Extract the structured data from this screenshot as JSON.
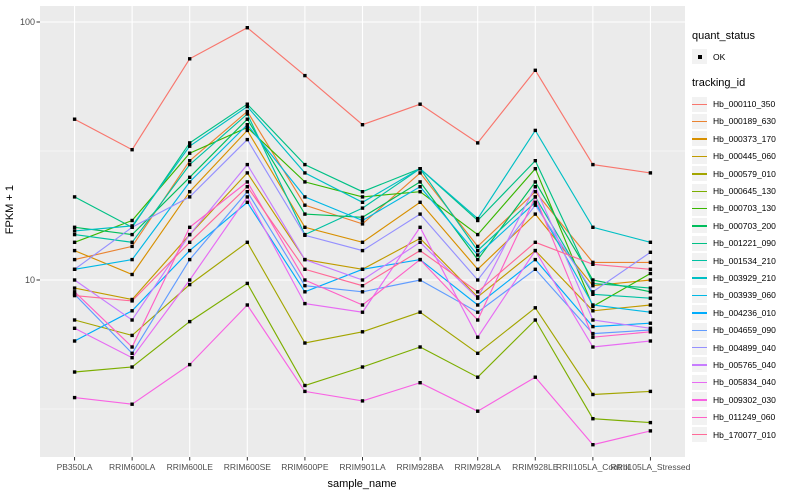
{
  "colors": {
    "figure_bg": "#FFFFFF",
    "panel_bg": "#EBEBEB",
    "grid_major": "#FFFFFF",
    "grid_minor": "#FFFFFF",
    "tick_mark": "#333333",
    "tick_label": "#4D4D4D",
    "marker": "#000000",
    "legend_key_bg": "#F2F2F2"
  },
  "legend": {
    "quant_title": "quant_status",
    "ok_label": "OK",
    "tracking_title": "tracking_id"
  },
  "chart_data": {
    "type": "line",
    "title": "",
    "xlabel": "sample_name",
    "ylabel": "FPKM + 1",
    "y_scale": "log10",
    "ylim": [
      2.1,
      113
    ],
    "y_major_ticks": [
      {
        "label": "10",
        "value": 10
      },
      {
        "label": "100",
        "value": 100
      }
    ],
    "y_minor_ticks": [
      3.162,
      31.62
    ],
    "grid": true,
    "legend_position": "right",
    "marker": "black-square",
    "quant_status_value": "OK",
    "categories": [
      "PB350LA",
      "RRIM600LA",
      "RRIM600LE",
      "RRIM600SE",
      "RRIM600PE",
      "RRIM901LA",
      "RRIM928BA",
      "RRIM928LA",
      "RRIM928LE",
      "RRII105LA_Control",
      "RRII105LA_Stressed"
    ],
    "series": [
      {
        "name": "Hb_000110_350",
        "color": "#F8766D",
        "values": [
          42,
          32,
          72,
          95,
          62,
          40,
          48,
          34,
          65,
          28,
          26
        ]
      },
      {
        "name": "Hb_000189_630",
        "color": "#EA8331",
        "values": [
          12,
          13.5,
          29,
          45,
          19.5,
          16.5,
          26,
          13.5,
          22,
          11.7,
          11.7
        ]
      },
      {
        "name": "Hb_000373_170",
        "color": "#D89000",
        "values": [
          13,
          10.5,
          22,
          38,
          16,
          14,
          20,
          11,
          18,
          9.5,
          10
        ]
      },
      {
        "name": "Hb_000445_060",
        "color": "#C09B00",
        "values": [
          9.3,
          8.4,
          15,
          26,
          12,
          11,
          14.5,
          8.6,
          13,
          7.6,
          8
        ]
      },
      {
        "name": "Hb_000579_010",
        "color": "#A3A500",
        "values": [
          7,
          6.1,
          9.6,
          14,
          5.7,
          6.3,
          7.5,
          5.2,
          7.8,
          3.6,
          3.7
        ]
      },
      {
        "name": "Hb_000645_130",
        "color": "#7CAE00",
        "values": [
          4.4,
          4.6,
          6.9,
          9.7,
          3.9,
          4.6,
          5.5,
          4.2,
          7,
          2.9,
          2.8
        ]
      },
      {
        "name": "Hb_000703_130",
        "color": "#39B600",
        "values": [
          14,
          17,
          31,
          39,
          24,
          21,
          22,
          15,
          27,
          7.9,
          10.6
        ]
      },
      {
        "name": "Hb_000703_200",
        "color": "#00BD5C",
        "values": [
          16,
          15,
          25,
          42,
          18,
          17.5,
          24,
          12,
          24,
          10,
          9
        ]
      },
      {
        "name": "Hb_001221_090",
        "color": "#00C085",
        "values": [
          21,
          16,
          34,
          48,
          28,
          22,
          27,
          17,
          29,
          9.7,
          9.3
        ]
      },
      {
        "name": "Hb_001534_210",
        "color": "#00C1A2",
        "values": [
          15,
          14,
          28,
          44,
          15,
          19,
          27,
          13,
          21,
          8.8,
          8.5
        ]
      },
      {
        "name": "Hb_003929_210",
        "color": "#00BFC4",
        "values": [
          15.5,
          16.2,
          33,
          47,
          26,
          20,
          27,
          17.3,
          38,
          16,
          14
        ]
      },
      {
        "name": "Hb_003939_060",
        "color": "#00B8E5",
        "values": [
          11,
          12,
          24,
          40,
          21,
          17,
          23,
          12.5,
          20,
          8,
          7.5
        ]
      },
      {
        "name": "Hb_004236_010",
        "color": "#00ACFC",
        "values": [
          5.8,
          7.6,
          13,
          20,
          9,
          11,
          12,
          8,
          12,
          6.6,
          6.8
        ]
      },
      {
        "name": "Hb_004659_090",
        "color": "#619CFF",
        "values": [
          8.8,
          5.2,
          12,
          22,
          9.5,
          9,
          10,
          7.5,
          11,
          6.2,
          6.4
        ]
      },
      {
        "name": "Hb_004899_040",
        "color": "#9590FF",
        "values": [
          11,
          16,
          21,
          35,
          14.9,
          13,
          18,
          10,
          19.5,
          9,
          12.8
        ]
      },
      {
        "name": "Hb_005765_040",
        "color": "#C77CFF",
        "values": [
          10,
          7,
          15,
          28,
          12,
          10,
          14,
          8.5,
          23,
          7,
          6.5
        ]
      },
      {
        "name": "Hb_005834_040",
        "color": "#E76BF3",
        "values": [
          6.5,
          5,
          10,
          21,
          8.1,
          7.5,
          16,
          6,
          13,
          5.5,
          5.8
        ]
      },
      {
        "name": "Hb_009302_030",
        "color": "#F863E3",
        "values": [
          3.5,
          3.3,
          4.7,
          8,
          3.7,
          3.4,
          4,
          3.1,
          4.2,
          2.3,
          2.6
        ]
      },
      {
        "name": "Hb_011249_060",
        "color": "#FF61C7",
        "values": [
          9,
          5.5,
          16,
          24,
          10,
          8,
          12,
          7,
          21,
          6,
          6.3
        ]
      },
      {
        "name": "Hb_170077_010",
        "color": "#FF6A98",
        "values": [
          8.7,
          8.3,
          14,
          23,
          11,
          9.5,
          13,
          9,
          14,
          11.5,
          11
        ]
      }
    ]
  }
}
